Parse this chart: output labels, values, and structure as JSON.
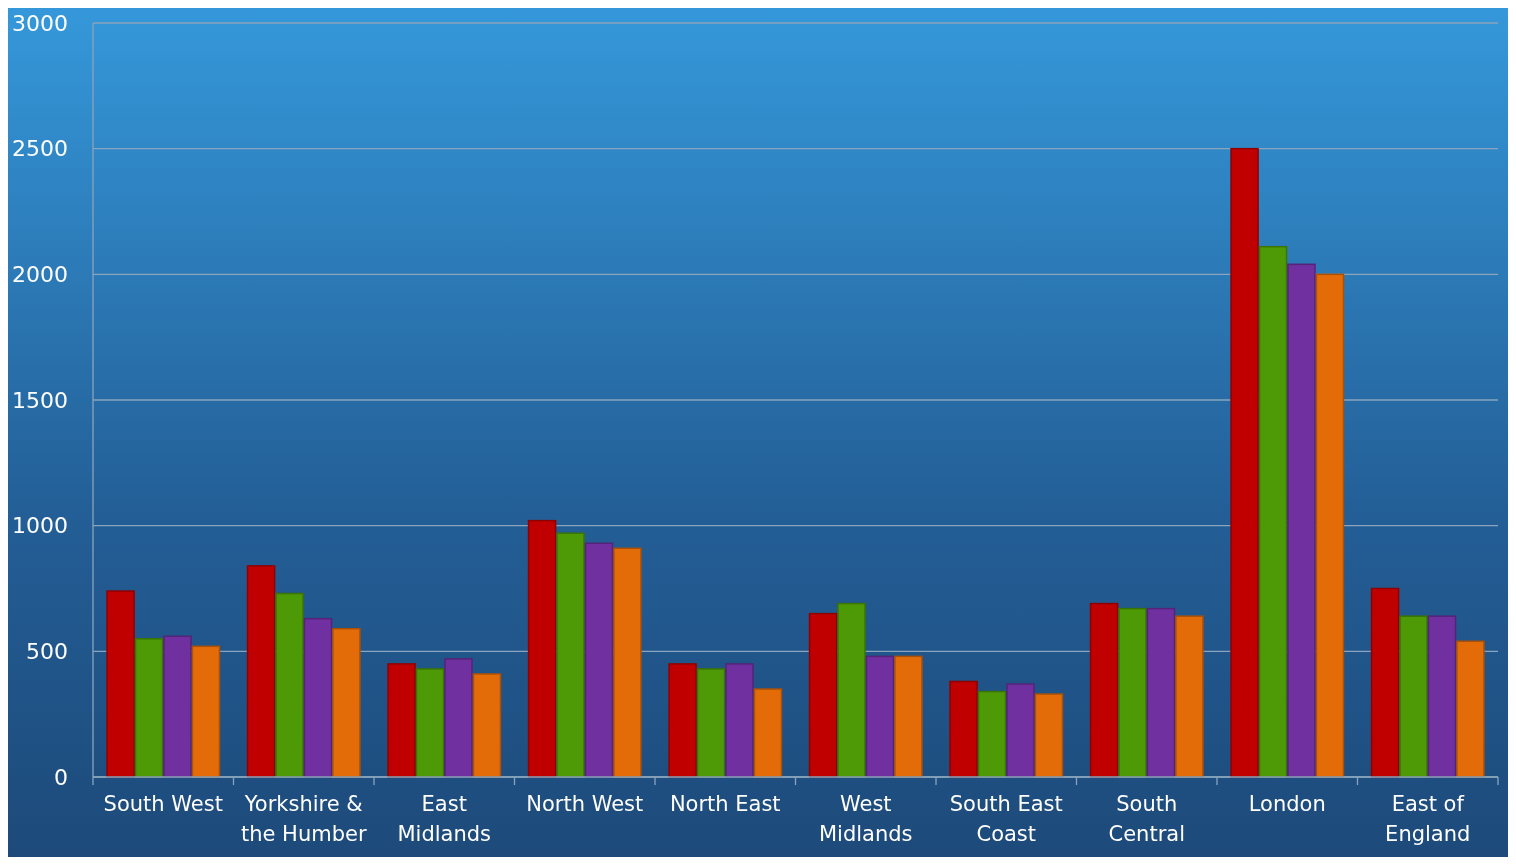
{
  "chart_data": {
    "type": "bar",
    "categories": [
      "South West",
      "Yorkshire & the Humber",
      "East Midlands",
      "North West",
      "North East",
      "West Midlands",
      "South East Coast",
      "South Central",
      "London",
      "East of England"
    ],
    "series": [
      {
        "color": "#c00000",
        "values": [
          740,
          840,
          450,
          1020,
          450,
          650,
          380,
          690,
          2500,
          750
        ]
      },
      {
        "color": "#4e9a06",
        "values": [
          550,
          730,
          430,
          970,
          430,
          690,
          340,
          670,
          2110,
          640
        ]
      },
      {
        "color": "#7030a0",
        "values": [
          560,
          630,
          470,
          930,
          450,
          480,
          370,
          670,
          2040,
          640
        ]
      },
      {
        "color": "#e36c09",
        "values": [
          520,
          590,
          410,
          910,
          350,
          480,
          330,
          640,
          2000,
          540
        ]
      }
    ],
    "ylim": [
      0,
      3000
    ],
    "yticks": [
      0,
      500,
      1000,
      1500,
      2000,
      2500,
      3000
    ],
    "grid": "y"
  }
}
